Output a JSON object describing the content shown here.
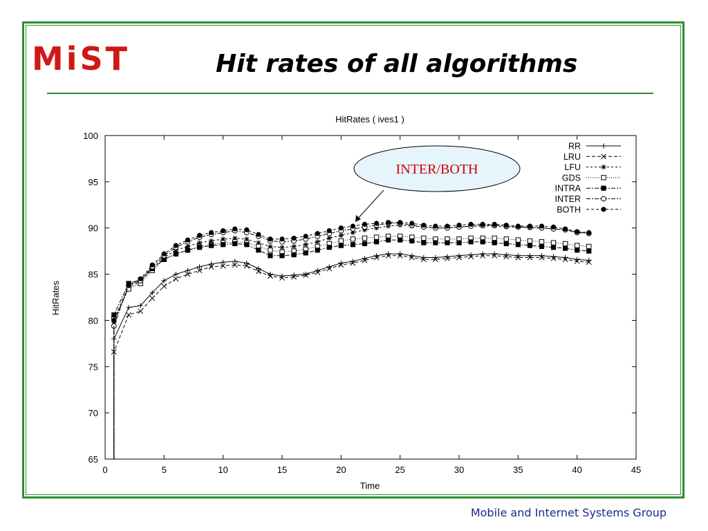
{
  "slide": {
    "logo_text": "MiST",
    "title": "Hit rates of all algorithms",
    "footer": "Mobile and Internet Systems Group"
  },
  "colors": {
    "frame": "#2e8b2e",
    "logo": "#d01818",
    "callout_text": "#cc0000",
    "callout_fill": "#e6f4fb",
    "footer": "#1a2a8a"
  },
  "chart_data": {
    "type": "line",
    "title": "HitRates ( ives1 )",
    "xlabel": "Time",
    "ylabel": "HitRates",
    "xlim": [
      0,
      45
    ],
    "ylim": [
      65,
      100
    ],
    "xticks": [
      0,
      5,
      10,
      15,
      20,
      25,
      30,
      35,
      40,
      45
    ],
    "yticks": [
      65,
      70,
      75,
      80,
      85,
      90,
      95,
      100
    ],
    "grid": false,
    "legend_position": "top-right",
    "annotation": {
      "text": "INTER/BOTH",
      "points_to": [
        21,
        90.0
      ]
    },
    "x": [
      1,
      2,
      3,
      4,
      5,
      6,
      7,
      8,
      9,
      10,
      11,
      12,
      13,
      14,
      15,
      16,
      17,
      18,
      19,
      20,
      21,
      22,
      23,
      24,
      25,
      26,
      27,
      28,
      29,
      30,
      31,
      32,
      33,
      34,
      35,
      36,
      37,
      38,
      39,
      40,
      41
    ],
    "series": [
      {
        "name": "RR",
        "marker": "plus",
        "dash": "",
        "values": [
          78.0,
          81.4,
          81.6,
          83.0,
          84.3,
          85.0,
          85.4,
          85.8,
          86.1,
          86.3,
          86.4,
          86.2,
          85.6,
          85.0,
          84.8,
          84.9,
          85.0,
          85.4,
          85.8,
          86.2,
          86.4,
          86.7,
          87.0,
          87.2,
          87.2,
          87.0,
          86.8,
          86.8,
          86.9,
          87.0,
          87.1,
          87.2,
          87.2,
          87.1,
          87.0,
          87.0,
          87.0,
          86.9,
          86.8,
          86.6,
          86.5
        ]
      },
      {
        "name": "LRU",
        "marker": "x",
        "dash": "5,3",
        "values": [
          76.6,
          80.6,
          81.0,
          82.4,
          83.7,
          84.5,
          85.0,
          85.4,
          85.8,
          85.9,
          86.0,
          85.9,
          85.3,
          84.8,
          84.6,
          84.7,
          84.9,
          85.2,
          85.6,
          86.0,
          86.2,
          86.5,
          86.8,
          87.0,
          87.0,
          86.8,
          86.6,
          86.6,
          86.7,
          86.8,
          86.9,
          87.0,
          87.0,
          86.9,
          86.8,
          86.8,
          86.8,
          86.7,
          86.6,
          86.4,
          86.3
        ]
      },
      {
        "name": "LFU",
        "marker": "star",
        "dash": "3,3",
        "values": [
          79.8,
          83.6,
          84.2,
          85.6,
          86.8,
          87.6,
          88.0,
          88.4,
          88.6,
          88.8,
          88.9,
          88.8,
          88.4,
          88.0,
          87.9,
          88.0,
          88.2,
          88.5,
          88.9,
          89.2,
          89.5,
          89.8,
          90.0,
          90.2,
          90.3,
          90.2,
          90.1,
          90.0,
          90.0,
          90.1,
          90.2,
          90.2,
          90.2,
          90.1,
          90.1,
          90.0,
          90.0,
          89.9,
          89.8,
          89.6,
          89.4
        ]
      },
      {
        "name": "GDS",
        "marker": "square-open",
        "dash": "1,2",
        "values": [
          80.2,
          83.4,
          84.0,
          85.4,
          86.6,
          87.2,
          87.6,
          88.0,
          88.2,
          88.4,
          88.5,
          88.4,
          88.0,
          87.6,
          87.4,
          87.5,
          87.7,
          88.0,
          88.3,
          88.6,
          88.8,
          88.9,
          89.0,
          89.1,
          89.1,
          89.0,
          88.9,
          88.8,
          88.8,
          88.8,
          88.9,
          88.9,
          88.9,
          88.8,
          88.7,
          88.6,
          88.5,
          88.4,
          88.3,
          88.1,
          88.0
        ]
      },
      {
        "name": "INTRA",
        "marker": "square-filled",
        "dash": "6,2,2,2",
        "values": [
          80.6,
          84.0,
          84.4,
          85.6,
          86.6,
          87.2,
          87.6,
          87.9,
          88.1,
          88.2,
          88.3,
          88.2,
          87.6,
          87.0,
          87.0,
          87.1,
          87.3,
          87.6,
          87.9,
          88.1,
          88.2,
          88.3,
          88.5,
          88.7,
          88.7,
          88.6,
          88.4,
          88.4,
          88.4,
          88.4,
          88.5,
          88.5,
          88.4,
          88.3,
          88.2,
          88.1,
          88.0,
          87.9,
          87.8,
          87.6,
          87.5
        ]
      },
      {
        "name": "INTER",
        "marker": "circle-open",
        "dash": "6,2,2,2",
        "values": [
          79.4,
          83.8,
          84.3,
          85.8,
          87.0,
          87.9,
          88.5,
          89.0,
          89.3,
          89.5,
          89.7,
          89.5,
          89.1,
          88.6,
          88.5,
          88.6,
          88.8,
          89.1,
          89.4,
          89.7,
          89.9,
          90.1,
          90.3,
          90.5,
          90.5,
          90.3,
          90.1,
          90.0,
          90.0,
          90.1,
          90.2,
          90.3,
          90.3,
          90.2,
          90.1,
          90.1,
          90.0,
          89.9,
          89.8,
          89.5,
          89.4
        ]
      },
      {
        "name": "BOTH",
        "marker": "circle-filled",
        "dash": "4,3",
        "values": [
          80.0,
          83.8,
          84.5,
          86.0,
          87.2,
          88.1,
          88.7,
          89.2,
          89.5,
          89.7,
          89.9,
          89.8,
          89.3,
          88.8,
          88.8,
          88.9,
          89.1,
          89.4,
          89.7,
          90.0,
          90.2,
          90.4,
          90.5,
          90.6,
          90.6,
          90.5,
          90.3,
          90.2,
          90.2,
          90.3,
          90.4,
          90.4,
          90.4,
          90.3,
          90.2,
          90.2,
          90.2,
          90.1,
          89.9,
          89.6,
          89.5
        ]
      }
    ]
  }
}
